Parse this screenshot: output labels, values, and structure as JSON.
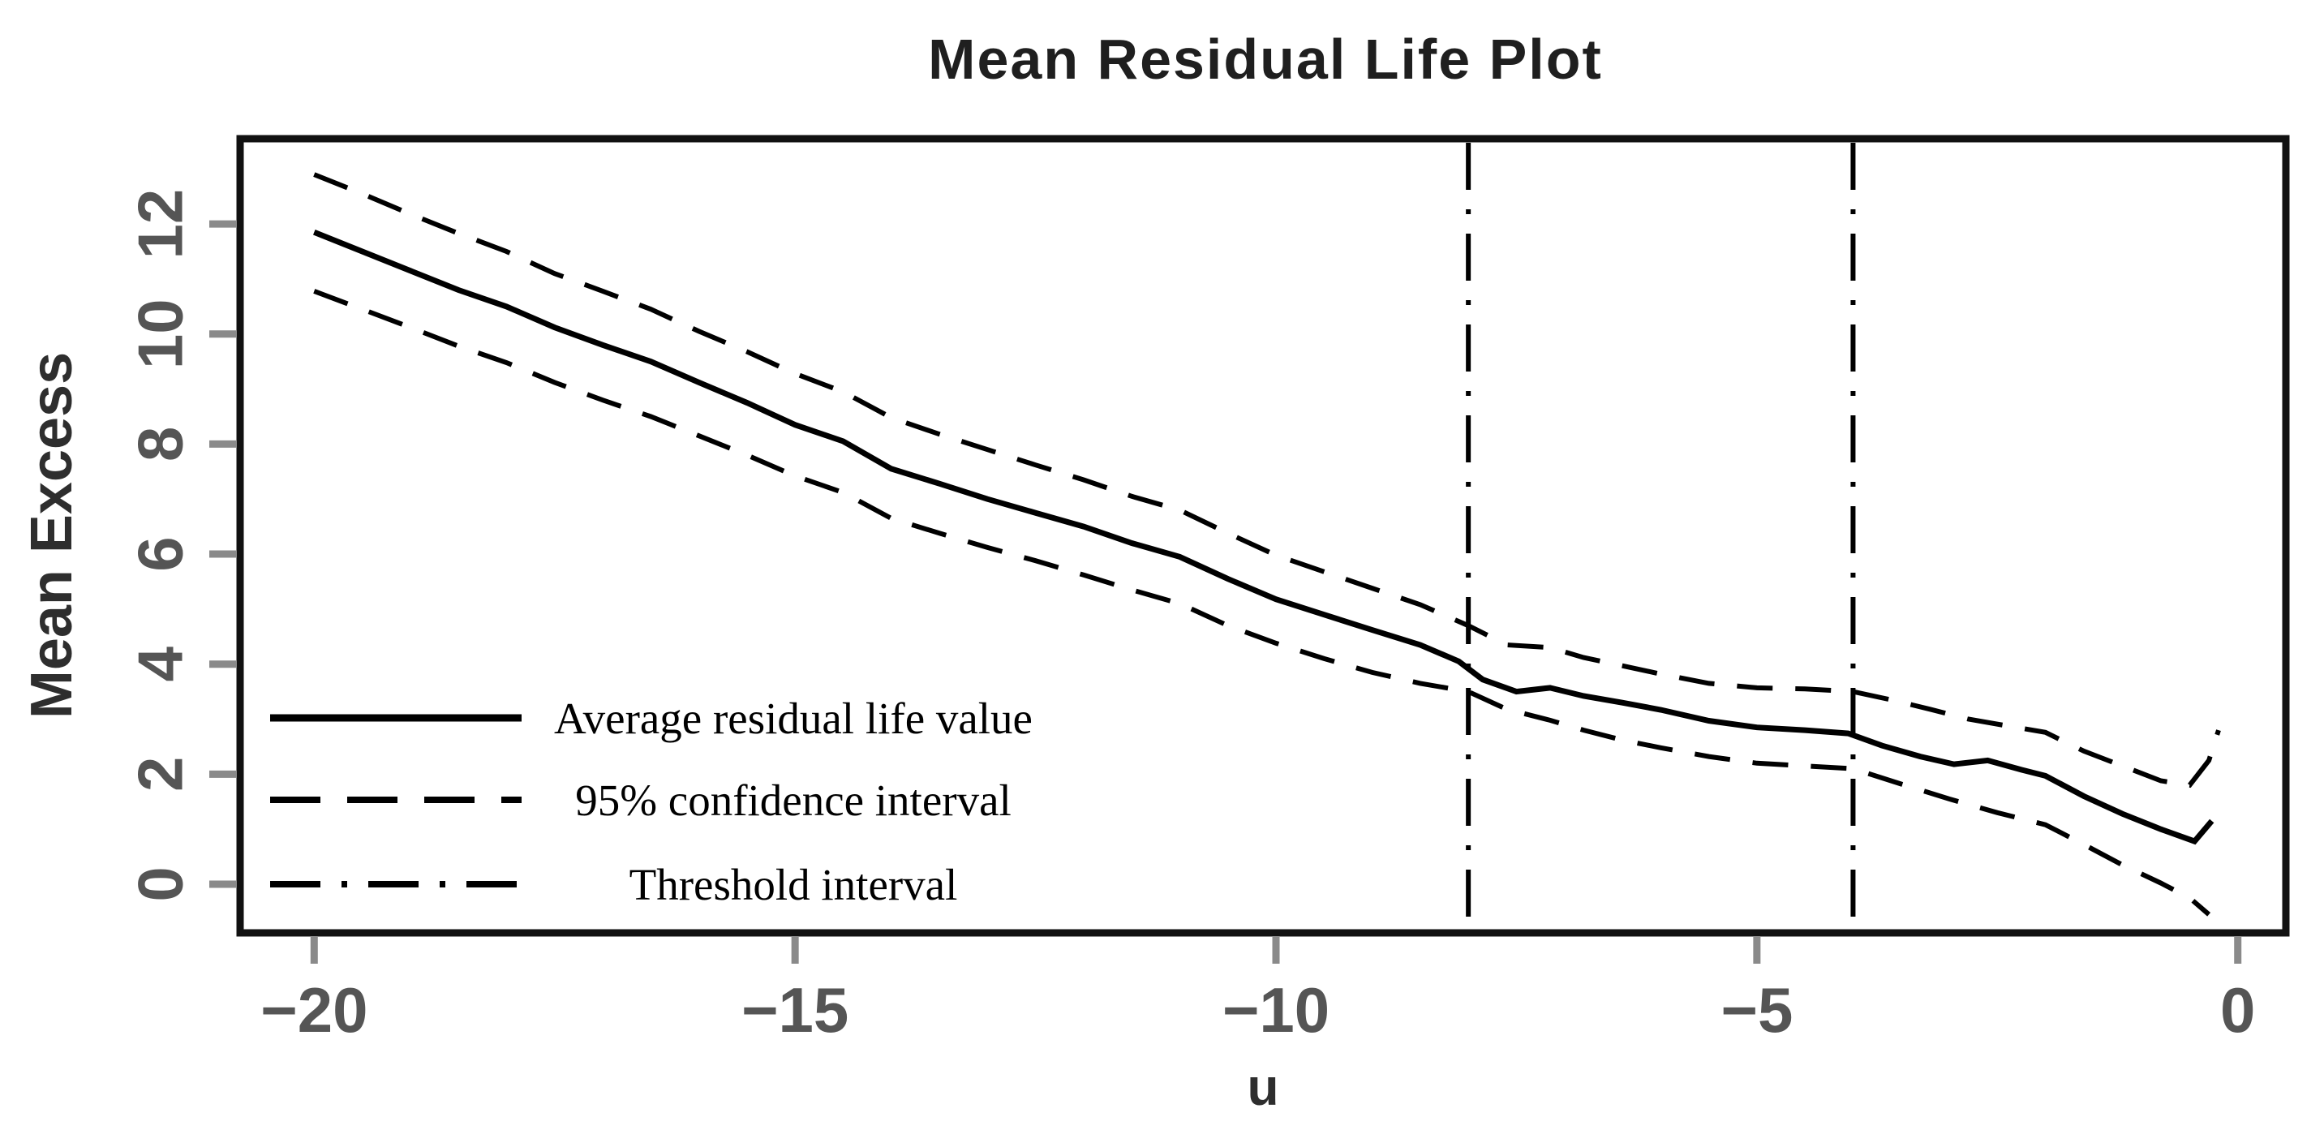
{
  "page": {
    "background": "#ffffff"
  },
  "chart_data": {
    "type": "line",
    "title": "Mean Residual Life Plot",
    "xlabel": "u",
    "ylabel": "Mean Excess",
    "x_ticks": [
      -20,
      -15,
      -10,
      -5,
      0
    ],
    "y_ticks": [
      0,
      2,
      4,
      6,
      8,
      10,
      12
    ],
    "xlim": [
      -20.77,
      0.5
    ],
    "ylim": [
      -0.885,
      13.55
    ],
    "grid": false,
    "frame": "box",
    "legend": {
      "position": "inside-bottom-left",
      "entries": [
        {
          "label": "Average residual life value",
          "line_style": "solid"
        },
        {
          "label": "95% confidence interval",
          "line_style": "dashed"
        },
        {
          "label": "Threshold interval",
          "line_style": "dash-dot"
        }
      ]
    },
    "threshold_lines_u": [
      -8,
      -4
    ],
    "series": [
      {
        "name": "mean_residual_life",
        "legend": "Average residual life value",
        "style": "solid",
        "points": [
          [
            -20,
            11.85
          ],
          [
            -19.5,
            11.5
          ],
          [
            -19,
            11.15
          ],
          [
            -18.5,
            10.8
          ],
          [
            -18,
            10.5
          ],
          [
            -17.5,
            10.12
          ],
          [
            -17,
            9.8
          ],
          [
            -16.5,
            9.5
          ],
          [
            -16,
            9.12
          ],
          [
            -15.5,
            8.75
          ],
          [
            -15,
            8.35
          ],
          [
            -14.5,
            8.05
          ],
          [
            -14,
            7.55
          ],
          [
            -13.5,
            7.28
          ],
          [
            -13,
            7.0
          ],
          [
            -12.5,
            6.75
          ],
          [
            -12,
            6.5
          ],
          [
            -11.5,
            6.2
          ],
          [
            -11,
            5.95
          ],
          [
            -10.5,
            5.55
          ],
          [
            -10,
            5.18
          ],
          [
            -9.5,
            4.9
          ],
          [
            -9,
            4.62
          ],
          [
            -8.5,
            4.35
          ],
          [
            -8.1,
            4.05
          ],
          [
            -7.85,
            3.72
          ],
          [
            -7.5,
            3.5
          ],
          [
            -7.15,
            3.57
          ],
          [
            -6.8,
            3.42
          ],
          [
            -6.4,
            3.3
          ],
          [
            -6,
            3.17
          ],
          [
            -5.5,
            2.97
          ],
          [
            -5,
            2.85
          ],
          [
            -4.5,
            2.8
          ],
          [
            -4.05,
            2.74
          ],
          [
            -3.7,
            2.52
          ],
          [
            -3.3,
            2.32
          ],
          [
            -2.95,
            2.18
          ],
          [
            -2.6,
            2.25
          ],
          [
            -2.25,
            2.08
          ],
          [
            -2,
            1.97
          ],
          [
            -1.6,
            1.6
          ],
          [
            -1.2,
            1.28
          ],
          [
            -0.8,
            1.0
          ],
          [
            -0.45,
            0.78
          ],
          [
            -0.27,
            1.15
          ]
        ]
      },
      {
        "name": "ci_upper_95",
        "legend": "95% confidence interval",
        "style": "dashed",
        "points": [
          [
            -20,
            12.9
          ],
          [
            -19.5,
            12.55
          ],
          [
            -19,
            12.18
          ],
          [
            -18.5,
            11.83
          ],
          [
            -18,
            11.5
          ],
          [
            -17.5,
            11.1
          ],
          [
            -17,
            10.78
          ],
          [
            -16.5,
            10.45
          ],
          [
            -16,
            10.05
          ],
          [
            -15.5,
            9.68
          ],
          [
            -15,
            9.28
          ],
          [
            -14.5,
            8.95
          ],
          [
            -14,
            8.48
          ],
          [
            -13.5,
            8.18
          ],
          [
            -13,
            7.9
          ],
          [
            -12.5,
            7.62
          ],
          [
            -12,
            7.35
          ],
          [
            -11.5,
            7.05
          ],
          [
            -11,
            6.8
          ],
          [
            -10.5,
            6.38
          ],
          [
            -10,
            5.98
          ],
          [
            -9.5,
            5.68
          ],
          [
            -9,
            5.38
          ],
          [
            -8.5,
            5.08
          ],
          [
            -8,
            4.7
          ],
          [
            -7.6,
            4.35
          ],
          [
            -7.15,
            4.3
          ],
          [
            -6.8,
            4.12
          ],
          [
            -6.4,
            3.97
          ],
          [
            -6,
            3.82
          ],
          [
            -5.5,
            3.65
          ],
          [
            -5,
            3.57
          ],
          [
            -4.5,
            3.55
          ],
          [
            -4,
            3.5
          ],
          [
            -3.6,
            3.35
          ],
          [
            -3.2,
            3.18
          ],
          [
            -2.8,
            3.0
          ],
          [
            -2.4,
            2.88
          ],
          [
            -2,
            2.76
          ],
          [
            -1.6,
            2.42
          ],
          [
            -1.2,
            2.15
          ],
          [
            -0.8,
            1.88
          ],
          [
            -0.5,
            1.8
          ],
          [
            -0.3,
            2.25
          ],
          [
            -0.2,
            2.8
          ]
        ]
      },
      {
        "name": "ci_lower_95",
        "legend": "95% confidence interval",
        "style": "dashed",
        "points": [
          [
            -20,
            10.78
          ],
          [
            -19.5,
            10.45
          ],
          [
            -19,
            10.12
          ],
          [
            -18.5,
            9.78
          ],
          [
            -18,
            9.48
          ],
          [
            -17.5,
            9.12
          ],
          [
            -17,
            8.8
          ],
          [
            -16.5,
            8.5
          ],
          [
            -16,
            8.15
          ],
          [
            -15.5,
            7.8
          ],
          [
            -15,
            7.42
          ],
          [
            -14.5,
            7.12
          ],
          [
            -14,
            6.65
          ],
          [
            -13.5,
            6.38
          ],
          [
            -13,
            6.12
          ],
          [
            -12.5,
            5.88
          ],
          [
            -12,
            5.62
          ],
          [
            -11.5,
            5.35
          ],
          [
            -11,
            5.1
          ],
          [
            -10.5,
            4.7
          ],
          [
            -10,
            4.38
          ],
          [
            -9.5,
            4.1
          ],
          [
            -9,
            3.85
          ],
          [
            -8.5,
            3.65
          ],
          [
            -8,
            3.5
          ],
          [
            -7.6,
            3.18
          ],
          [
            -7.15,
            2.98
          ],
          [
            -6.8,
            2.8
          ],
          [
            -6.4,
            2.62
          ],
          [
            -6,
            2.48
          ],
          [
            -5.5,
            2.32
          ],
          [
            -5,
            2.2
          ],
          [
            -4.5,
            2.15
          ],
          [
            -4,
            2.1
          ],
          [
            -3.5,
            1.82
          ],
          [
            -3,
            1.55
          ],
          [
            -2.5,
            1.3
          ],
          [
            -2,
            1.08
          ],
          [
            -1.6,
            0.72
          ],
          [
            -1.2,
            0.35
          ],
          [
            -0.8,
            0.02
          ],
          [
            -0.5,
            -0.25
          ],
          [
            -0.3,
            -0.55
          ]
        ]
      }
    ],
    "colors": {
      "curve": "#000000",
      "frame": "#111111",
      "tick_mark": "#8a8a8a",
      "tick_label": "#555555",
      "title": "#1f1f1f",
      "axis_label": "#2e2e2e",
      "legend_text": "#000000",
      "background": "#ffffff"
    }
  }
}
